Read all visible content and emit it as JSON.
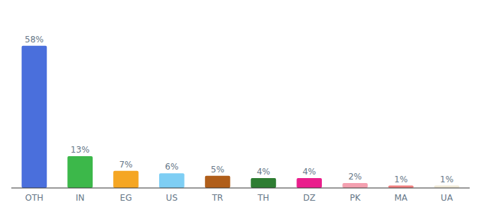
{
  "chart_data": {
    "type": "bar",
    "categories": [
      "OTH",
      "IN",
      "EG",
      "US",
      "TR",
      "TH",
      "DZ",
      "PK",
      "MA",
      "UA"
    ],
    "values": [
      58,
      13,
      7,
      6,
      5,
      4,
      4,
      2,
      1,
      1
    ],
    "value_labels": [
      "58%",
      "13%",
      "7%",
      "6%",
      "5%",
      "4%",
      "4%",
      "2%",
      "1%",
      "1%"
    ],
    "colors": [
      "#4a6fdc",
      "#3cb84a",
      "#f5a623",
      "#7ecef4",
      "#b05e1a",
      "#2e7d32",
      "#e91e8c",
      "#f4a0b0",
      "#f08080",
      "#f0ead8"
    ],
    "ylim": [
      0,
      68
    ],
    "data_labels": true,
    "tick_labels": "x",
    "grid": false
  }
}
